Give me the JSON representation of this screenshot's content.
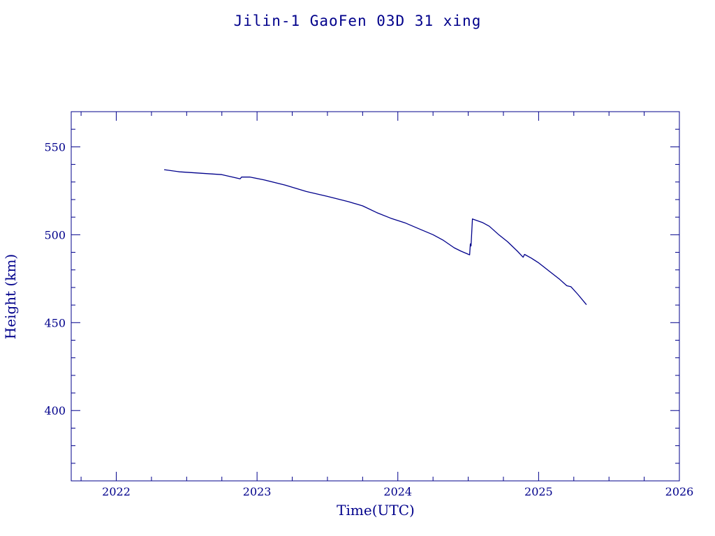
{
  "chart_data": {
    "type": "line",
    "title": "Jilin-1 GaoFen 03D 31 xing",
    "xlabel": "Time(UTC)",
    "ylabel": "Height (km)",
    "xlim": [
      2021.68,
      2026.0
    ],
    "ylim": [
      360,
      570
    ],
    "x_ticks": [
      "2022",
      "2023",
      "2024",
      "2025",
      "2026"
    ],
    "y_ticks": [
      "400",
      "450",
      "500",
      "550"
    ],
    "grid": false,
    "color": "#00008B",
    "series": [
      {
        "name": "",
        "points": [
          [
            2022.34,
            537.0
          ],
          [
            2022.45,
            535.8
          ],
          [
            2022.6,
            535.0
          ],
          [
            2022.75,
            534.2
          ],
          [
            2022.88,
            531.8
          ],
          [
            2022.89,
            532.8
          ],
          [
            2022.95,
            532.8
          ],
          [
            2023.05,
            531.2
          ],
          [
            2023.2,
            528.2
          ],
          [
            2023.35,
            524.6
          ],
          [
            2023.5,
            521.8
          ],
          [
            2023.65,
            518.8
          ],
          [
            2023.75,
            516.4
          ],
          [
            2023.85,
            512.6
          ],
          [
            2023.95,
            509.4
          ],
          [
            2024.05,
            506.8
          ],
          [
            2024.15,
            503.4
          ],
          [
            2024.25,
            500.0
          ],
          [
            2024.32,
            497.0
          ],
          [
            2024.4,
            492.6
          ],
          [
            2024.45,
            490.6
          ],
          [
            2024.51,
            488.6
          ],
          [
            2024.515,
            494.8
          ],
          [
            2024.52,
            493.6
          ],
          [
            2024.53,
            509.0
          ],
          [
            2024.6,
            507.0
          ],
          [
            2024.65,
            504.8
          ],
          [
            2024.72,
            499.8
          ],
          [
            2024.78,
            496.0
          ],
          [
            2024.85,
            490.6
          ],
          [
            2024.89,
            487.2
          ],
          [
            2024.9,
            488.8
          ],
          [
            2024.95,
            486.6
          ],
          [
            2025.0,
            484.0
          ],
          [
            2025.08,
            479.0
          ],
          [
            2025.15,
            474.6
          ],
          [
            2025.2,
            471.0
          ],
          [
            2025.23,
            470.4
          ],
          [
            2025.28,
            466.0
          ],
          [
            2025.34,
            460.2
          ]
        ]
      }
    ]
  }
}
